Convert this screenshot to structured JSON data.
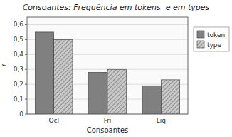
{
  "chart_data": {
    "type": "bar",
    "title": "Consoantes: Frequência em tokens  e em types",
    "x_label": "Consoantes",
    "y_label": "f",
    "categories": [
      "Ocl",
      "Fri",
      "Liq"
    ],
    "series": [
      {
        "name": "token",
        "color": "#808080",
        "values": [
          0.55,
          0.28,
          0.19
        ]
      },
      {
        "name": "type",
        "color": "#c8c8c8",
        "values": [
          0.5,
          0.3,
          0.23
        ]
      }
    ],
    "ylim": [
      0,
      0.65
    ],
    "yticks": [
      0,
      {
        "value": 0.1,
        "label": "0,1"
      },
      {
        "value": 0.2,
        "label": "0,2"
      },
      {
        "value": 0.3,
        "label": "0,3"
      },
      {
        "value": 0.4,
        "label": "0,4"
      },
      {
        "value": 0.5,
        "label": "0,5"
      },
      {
        "value": 0.6,
        "label": "0,6"
      }
    ],
    "grid": true,
    "legend": "right"
  }
}
